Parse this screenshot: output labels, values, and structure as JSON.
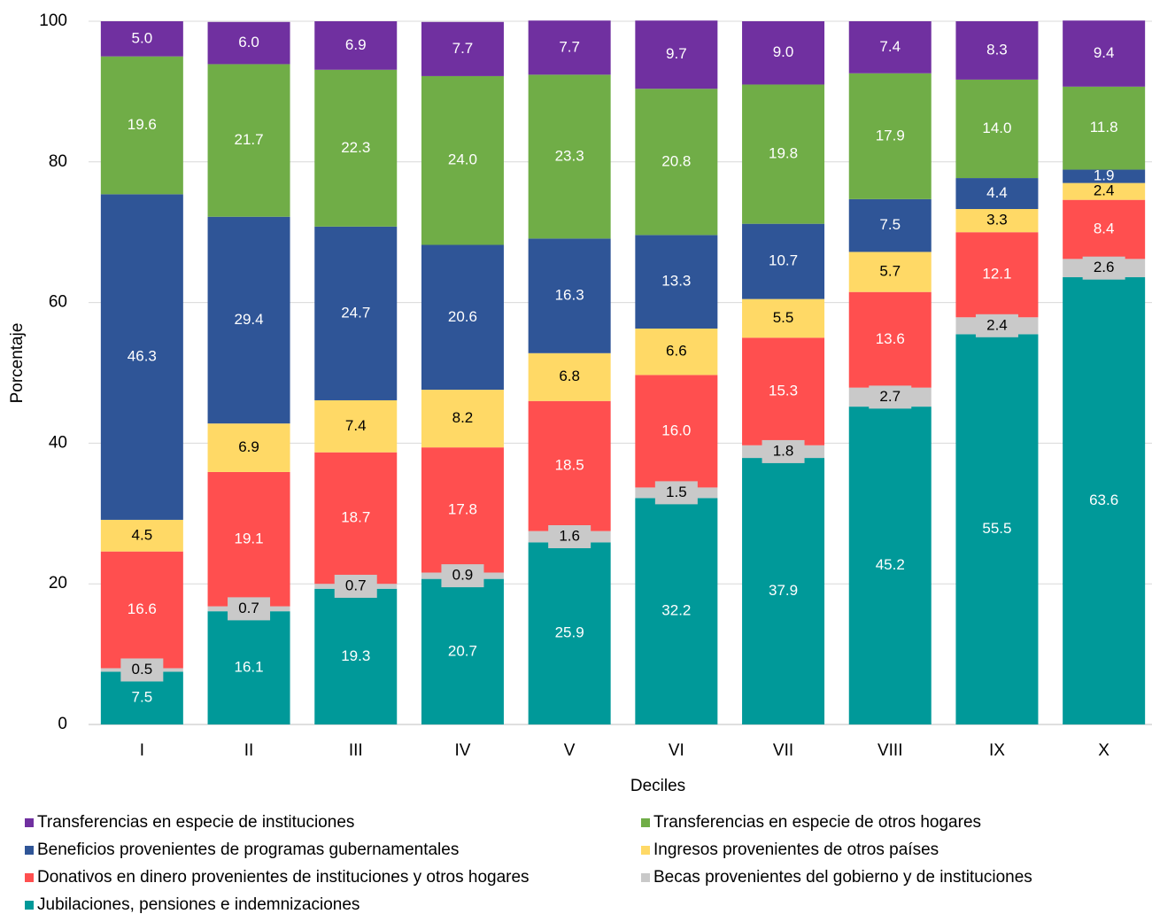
{
  "chart_data": {
    "type": "stacked_bar",
    "x_label": "Deciles",
    "y_label": "Porcentaje",
    "categories": [
      "I",
      "II",
      "III",
      "IV",
      "V",
      "VI",
      "VII",
      "VIII",
      "IX",
      "X"
    ],
    "ylim": [
      0,
      100
    ],
    "yticks": [
      0,
      20,
      40,
      60,
      80,
      100
    ],
    "grid": true,
    "series": [
      {
        "name": "Jubilaciones, pensiones e indemnizaciones",
        "color": "#009999",
        "values": [
          7.5,
          16.1,
          19.3,
          20.7,
          25.9,
          32.2,
          37.9,
          45.2,
          55.5,
          63.6
        ],
        "value_labels": [
          "7.5",
          "16.1",
          "19.3",
          "20.7",
          "25.9",
          "32.2",
          "37.9",
          "45.2",
          "55.5",
          "63.6"
        ]
      },
      {
        "name": "Becas provenientes del gobierno y de instituciones",
        "color": "#c9c9c9",
        "values": [
          0.5,
          0.7,
          0.7,
          0.9,
          1.6,
          1.5,
          1.8,
          2.7,
          2.4,
          2.6
        ],
        "value_labels": [
          "0.5",
          "0.7",
          "0.7",
          "0.9",
          "1.6",
          "1.5",
          "1.8",
          "2.7",
          "2.4",
          "2.6"
        ]
      },
      {
        "name": "Donativos en dinero provenientes de instituciones y otros hogares",
        "color": "#ff4f4f",
        "values": [
          16.6,
          19.1,
          18.7,
          17.8,
          18.5,
          16.0,
          15.3,
          13.6,
          12.1,
          8.4
        ],
        "value_labels": [
          "16.6",
          "19.1",
          "18.7",
          "17.8",
          "18.5",
          "16.0",
          "15.3",
          "13.6",
          "12.1",
          "8.4"
        ]
      },
      {
        "name": "Ingresos provenientes de otros países",
        "color": "#ffd966",
        "values": [
          4.5,
          6.9,
          7.4,
          8.2,
          6.8,
          6.6,
          5.5,
          5.7,
          3.3,
          2.4
        ],
        "value_labels": [
          "4.5",
          "6.9",
          "7.4",
          "8.2",
          "6.8",
          "6.6",
          "5.5",
          "5.7",
          "3.3",
          "2.4"
        ]
      },
      {
        "name": "Beneficios provenientes de programas gubernamentales",
        "color": "#2f5597",
        "values": [
          46.3,
          29.4,
          24.7,
          20.6,
          16.3,
          13.3,
          10.7,
          7.5,
          4.4,
          1.9
        ],
        "value_labels": [
          "46.3",
          "29.4",
          "24.7",
          "20.6",
          "16.3",
          "13.3",
          "10.7",
          "7.5",
          "4.4",
          "1.9"
        ]
      },
      {
        "name": "Transferencias en especie de otros hogares",
        "color": "#70ad47",
        "values": [
          19.6,
          21.7,
          22.3,
          24.0,
          23.3,
          20.8,
          19.8,
          17.9,
          14.0,
          11.8
        ],
        "value_labels": [
          "19.6",
          "21.7",
          "22.3",
          "24.0",
          "23.3",
          "20.8",
          "19.8",
          "17.9",
          "14.0",
          "11.8"
        ]
      },
      {
        "name": "Transferencias en especie de instituciones",
        "color": "#7030a0",
        "values": [
          5.0,
          6.0,
          6.9,
          7.7,
          7.7,
          9.7,
          9.0,
          7.4,
          8.3,
          9.4
        ],
        "value_labels": [
          "5.0",
          "6.0",
          "6.9",
          "7.7",
          "7.7",
          "9.7",
          "9.0",
          "7.4",
          "8.3",
          "9.4"
        ]
      }
    ]
  }
}
